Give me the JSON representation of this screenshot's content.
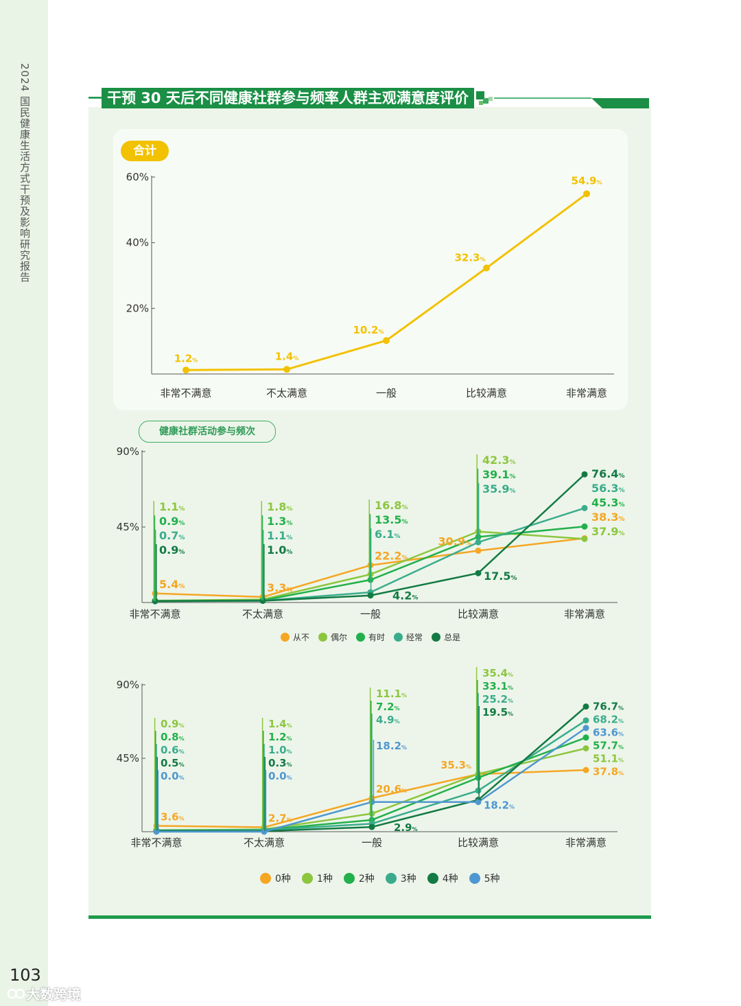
{
  "side_title": "2024 国民健康生活方式干预及影响研究报告",
  "page_number": "103",
  "watermark": "大数跨境",
  "title": "干预 30 天后不同健康社群参与频率人群主观满意度评价",
  "colors": {
    "panel_green": "#1f9a4e",
    "total_line": "#f2c100",
    "accent": "#1a8f45"
  },
  "chart_data": [
    {
      "id": "chart-total",
      "type": "line",
      "label": "合计",
      "categories": [
        "非常不满意",
        "不太满意",
        "一般",
        "比较满意",
        "非常满意"
      ],
      "y_ticks": [
        "20%",
        "40%",
        "60%"
      ],
      "ylim": [
        0,
        60
      ],
      "series": [
        {
          "name": "合计",
          "color": "#f2c100",
          "values": [
            1.2,
            1.4,
            10.2,
            32.3,
            54.9
          ]
        }
      ]
    },
    {
      "id": "chart-frequency",
      "type": "line",
      "label": "健康社群活动参与频次",
      "categories": [
        "非常不满意",
        "不太满意",
        "一般",
        "比较满意",
        "非常满意"
      ],
      "y_ticks": [
        "45%",
        "90%"
      ],
      "ylim": [
        0,
        90
      ],
      "series": [
        {
          "name": "从不",
          "color": "#f5a623",
          "values": [
            5.4,
            3.3,
            22.2,
            30.9,
            38.3
          ]
        },
        {
          "name": "偶尔",
          "color": "#8cc63f",
          "values": [
            1.1,
            1.8,
            16.8,
            42.3,
            37.9
          ]
        },
        {
          "name": "有时",
          "color": "#22b04b",
          "values": [
            0.9,
            1.3,
            13.5,
            39.1,
            45.3
          ]
        },
        {
          "name": "经常",
          "color": "#3aac8c",
          "values": [
            0.7,
            1.1,
            6.1,
            35.9,
            56.3
          ]
        },
        {
          "name": "总是",
          "color": "#137a44",
          "values": [
            0.9,
            1.0,
            4.2,
            17.5,
            76.4
          ]
        }
      ]
    },
    {
      "id": "chart-types",
      "type": "line",
      "label": "",
      "categories": [
        "非常不满意",
        "不太满意",
        "一般",
        "比较满意",
        "非常满意"
      ],
      "y_ticks": [
        "45%",
        "90%"
      ],
      "ylim": [
        0,
        90
      ],
      "series": [
        {
          "name": "0种",
          "color": "#f5a623",
          "values": [
            3.6,
            2.7,
            20.6,
            35.3,
            37.8
          ]
        },
        {
          "name": "1种",
          "color": "#8cc63f",
          "values": [
            0.9,
            1.4,
            11.1,
            35.4,
            51.1
          ]
        },
        {
          "name": "2种",
          "color": "#22b04b",
          "values": [
            0.8,
            1.2,
            7.2,
            33.1,
            57.7
          ]
        },
        {
          "name": "3种",
          "color": "#3aac8c",
          "values": [
            0.6,
            1.0,
            4.9,
            25.2,
            68.2
          ]
        },
        {
          "name": "4种",
          "color": "#137a44",
          "values": [
            0.5,
            0.3,
            2.9,
            19.5,
            76.7
          ]
        },
        {
          "name": "5种",
          "color": "#4f97d0",
          "values": [
            0.0,
            0.0,
            18.2,
            18.2,
            63.6
          ]
        }
      ]
    }
  ]
}
